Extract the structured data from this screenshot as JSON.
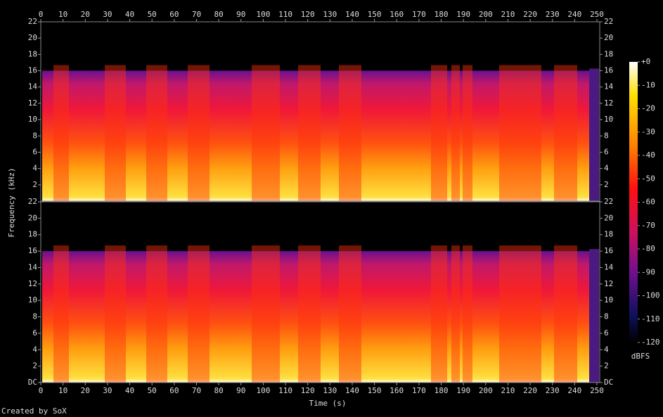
{
  "chart_data": {
    "type": "spectrogram",
    "x_label": "Time (s)",
    "y_label": "Frequency (kHz)",
    "footer": "Created by SoX",
    "xlim": [
      0,
      250
    ],
    "xticks": [
      0,
      10,
      20,
      30,
      40,
      50,
      60,
      70,
      80,
      90,
      100,
      110,
      120,
      130,
      140,
      150,
      160,
      170,
      180,
      190,
      200,
      210,
      220,
      230,
      240,
      250
    ],
    "channels": [
      {
        "ylim": [
          0,
          22
        ],
        "yticks": [
          2,
          4,
          6,
          8,
          10,
          12,
          14,
          16,
          18,
          20,
          22
        ]
      },
      {
        "ylim": [
          0,
          22
        ],
        "yticks": [
          {
            "value": 0,
            "label": "DC"
          },
          2,
          4,
          6,
          8,
          10,
          12,
          14,
          16,
          18,
          20,
          22
        ]
      }
    ],
    "colorbar": {
      "label": "dBFS",
      "lim": [
        -120,
        0
      ],
      "ticks": [
        {
          "value": 0,
          "label": "+0"
        },
        -10,
        -20,
        -30,
        -40,
        -50,
        -60,
        -70,
        -80,
        -90,
        -100,
        -110,
        -120
      ]
    }
  }
}
